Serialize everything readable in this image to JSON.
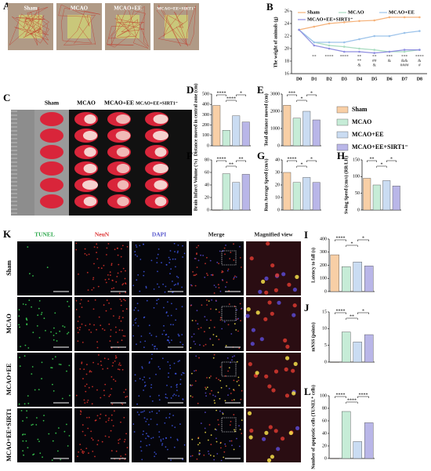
{
  "figure": {
    "open_field": {
      "label": "A",
      "groups": [
        "Sham",
        "MCAO",
        "MCAO+EE",
        "MCAO+EE+SIRT1⁻"
      ]
    },
    "ttc": {
      "label": "C",
      "groups": [
        "Sham",
        "MCAO",
        "MCAO+EE",
        "MCAO+EE+SIRT1⁻"
      ]
    },
    "staining": {
      "label": "K",
      "channels": [
        "TUNEL",
        "NeuN",
        "DAPI",
        "Merge",
        "Magnified view"
      ],
      "groups": [
        "Sham",
        "MCAO",
        "MCAO+EE",
        "MCAO+EE+SIRT1"
      ]
    },
    "legend": {
      "names": [
        "Sham",
        "MCAO",
        "MCAO+EE",
        "MCAO+EE+SIRT1⁻"
      ],
      "colors": [
        "#f8cfa6",
        "#c6ecd7",
        "#cadcf2",
        "#b9b6e8"
      ]
    }
  },
  "chart_data": [
    {
      "type": "line",
      "label": "B",
      "ylabel": "The weight of animals (g)",
      "categories": [
        "D0",
        "D1",
        "D2",
        "D3",
        "D4",
        "D5",
        "D6",
        "D7",
        "D8"
      ],
      "series": [
        {
          "name": "Sham",
          "color": "#f5b27a",
          "values": [
            23,
            23.5,
            24,
            24.2,
            24.4,
            24.5,
            25,
            25,
            25
          ]
        },
        {
          "name": "MCAO",
          "color": "#a8dcc0",
          "values": [
            23,
            21,
            20.5,
            20.3,
            20,
            19.8,
            19.5,
            19.5,
            19.8
          ]
        },
        {
          "name": "MCAO+EE",
          "color": "#9cc3ea",
          "values": [
            23,
            21,
            21,
            21,
            21.5,
            22,
            22,
            22.5,
            22.8
          ]
        },
        {
          "name": "MCAO+EE+SIRT1⁻",
          "color": "#8f8ee0",
          "values": [
            23,
            20.5,
            20,
            19.5,
            19.5,
            19.3,
            19.5,
            19.8,
            19.8
          ]
        }
      ],
      "ylim": [
        16,
        26
      ],
      "yticks": [
        16,
        18,
        20,
        22,
        24,
        26
      ],
      "annotations": [
        {
          "label": "**",
          "at": 1
        },
        {
          "label": "****",
          "at": 2
        },
        {
          "label": "****",
          "at": 3
        },
        {
          "label": "**",
          "at": 4
        },
        {
          "label": "**",
          "at": 4
        },
        {
          "label": "&",
          "at": 4
        },
        {
          "label": "**",
          "at": 5
        },
        {
          "label": "##",
          "at": 5
        },
        {
          "label": "&",
          "at": 5
        },
        {
          "label": "***",
          "at": 6
        },
        {
          "label": "&",
          "at": 6
        },
        {
          "label": "***",
          "at": 7
        },
        {
          "label": "&&",
          "at": 7
        },
        {
          "label": "####",
          "at": 7
        },
        {
          "label": "****",
          "at": 8
        },
        {
          "label": "&",
          "at": 8
        },
        {
          "label": "#",
          "at": 8
        }
      ]
    },
    {
      "type": "bar",
      "label": "D",
      "ylabel": "Distance moved in central zone (cm)",
      "values": [
        390,
        150,
        290,
        230
      ],
      "ylim": [
        0,
        500
      ],
      "yticks": [
        0,
        100,
        200,
        300,
        400,
        500
      ],
      "significance": [
        {
          "label": "****",
          "from": 0,
          "to": 1
        },
        {
          "label": "****",
          "from": 1,
          "to": 2
        },
        {
          "label": "*",
          "from": 2,
          "to": 3
        }
      ]
    },
    {
      "type": "bar",
      "label": "E",
      "ylabel": "Total distance moved (cm)",
      "values": [
        2350,
        1600,
        2000,
        1500
      ],
      "ylim": [
        0,
        3000
      ],
      "yticks": [
        0,
        1000,
        2000,
        3000
      ],
      "significance": [
        {
          "label": "***",
          "from": 0,
          "to": 1
        },
        {
          "label": "*",
          "from": 1,
          "to": 2
        },
        {
          "label": "*",
          "from": 2,
          "to": 3
        }
      ]
    },
    {
      "type": "bar",
      "label": "F",
      "ylabel": "Brain Infarct Volume (%)",
      "values": [
        0,
        58,
        44,
        57
      ],
      "ylim": [
        0,
        80
      ],
      "yticks": [
        0,
        20,
        40,
        60,
        80
      ],
      "significance": [
        {
          "label": "****",
          "from": 0,
          "to": 1
        },
        {
          "label": "**",
          "from": 1,
          "to": 2
        },
        {
          "label": "**",
          "from": 2,
          "to": 3
        }
      ]
    },
    {
      "type": "bar",
      "label": "G",
      "ylabel": "Run Average Speed (cm/s)",
      "values": [
        30,
        22,
        26,
        22
      ],
      "ylim": [
        0,
        40
      ],
      "yticks": [
        0,
        10,
        20,
        30,
        40
      ],
      "significance": [
        {
          "label": "****",
          "from": 0,
          "to": 1
        },
        {
          "label": "*",
          "from": 1,
          "to": 2
        },
        {
          "label": "*",
          "from": 2,
          "to": 3
        }
      ]
    },
    {
      "type": "bar",
      "label": "H",
      "ylabel": "Swing Speed (cm/s) (RR/LH)",
      "values": [
        95,
        75,
        88,
        72
      ],
      "ylim": [
        0,
        150
      ],
      "yticks": [
        0,
        50,
        100,
        150
      ],
      "significance": [
        {
          "label": "**",
          "from": 0,
          "to": 1
        },
        {
          "label": "*",
          "from": 1,
          "to": 2
        },
        {
          "label": "*",
          "from": 2,
          "to": 3
        }
      ]
    },
    {
      "type": "bar",
      "label": "I",
      "ylabel": "Latency to fall (s)",
      "values": [
        280,
        190,
        225,
        195
      ],
      "ylim": [
        0,
        400
      ],
      "yticks": [
        0,
        100,
        200,
        300,
        400
      ],
      "significance": [
        {
          "label": "****",
          "from": 0,
          "to": 1
        },
        {
          "label": "*",
          "from": 1,
          "to": 2
        },
        {
          "label": "*",
          "from": 2,
          "to": 3
        }
      ]
    },
    {
      "type": "bar",
      "label": "J",
      "ylabel": "mNSS (points)",
      "values": [
        0,
        9,
        6,
        8.2
      ],
      "ylim": [
        0,
        15
      ],
      "yticks": [
        0,
        5,
        10,
        15
      ],
      "significance": [
        {
          "label": "****",
          "from": 0,
          "to": 1
        },
        {
          "label": "**",
          "from": 1,
          "to": 2
        },
        {
          "label": "*",
          "from": 2,
          "to": 3
        }
      ]
    },
    {
      "type": "bar",
      "label": "L",
      "ylabel": "Number of apoptotic cells (TUNEL⁺ cells)",
      "values": [
        0,
        75,
        27,
        57
      ],
      "ylim": [
        0,
        100
      ],
      "yticks": [
        0,
        20,
        40,
        60,
        80,
        100
      ],
      "significance": [
        {
          "label": "****",
          "from": 0,
          "to": 1
        },
        {
          "label": "****",
          "from": 1,
          "to": 2
        },
        {
          "label": "****",
          "from": 2,
          "to": 3
        }
      ]
    }
  ]
}
